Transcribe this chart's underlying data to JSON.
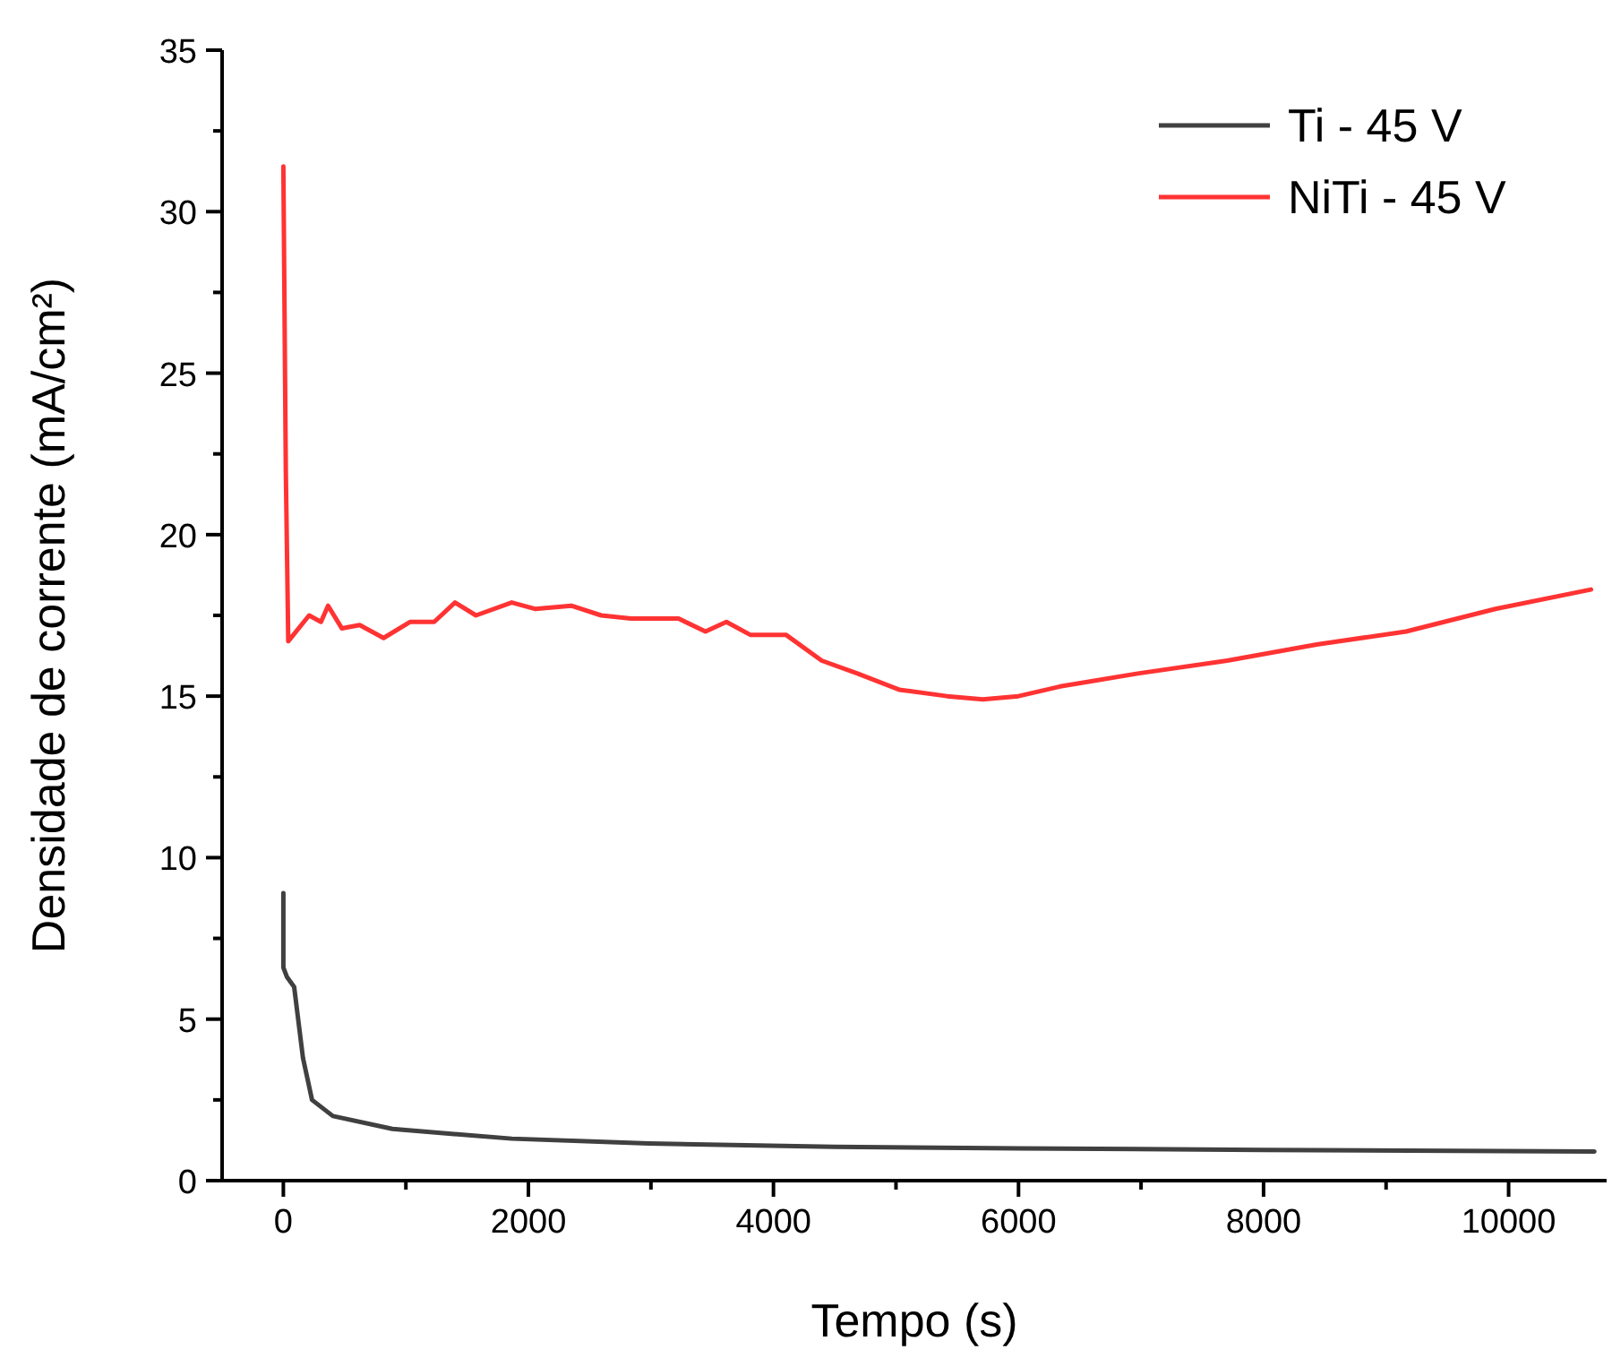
{
  "chart_data": {
    "type": "line",
    "xlabel": "Tempo (s)",
    "ylabel": "Densidade de corrente (mA/cm²)",
    "xlim": [
      -500,
      10800
    ],
    "ylim": [
      0,
      35
    ],
    "xticks": [
      0,
      {
        "value": 1000,
        "label": null
      },
      2000,
      {
        "value": 3000,
        "label": null
      },
      4000,
      {
        "value": 5000,
        "label": null
      },
      6000,
      {
        "value": 7000,
        "label": null
      },
      8000,
      {
        "value": 9000,
        "label": null
      },
      10000
    ],
    "yticks": [
      0,
      {
        "value": 2.5,
        "label": null
      },
      5,
      {
        "value": 7.5,
        "label": null
      },
      10,
      {
        "value": 12.5,
        "label": null
      },
      15,
      {
        "value": 17.5,
        "label": null
      },
      20,
      {
        "value": 22.5,
        "label": null
      },
      25,
      {
        "value": 27.5,
        "label": null
      },
      30,
      {
        "value": 32.5,
        "label": null
      },
      35
    ],
    "legend": "top right",
    "grid": false,
    "line_style": "solid",
    "marker": "none",
    "series": [
      {
        "name": "Ti - 45 V",
        "color": "#404040",
        "x": [
          0,
          0,
          30,
          88,
          160,
          234,
          404,
          890,
          1864,
          2983,
          4494,
          6000,
          8000,
          10700
        ],
        "values": [
          8.9,
          6.6,
          6.3,
          6.0,
          3.8,
          2.5,
          2.0,
          1.6,
          1.3,
          1.15,
          1.05,
          1.0,
          0.95,
          0.9
        ]
      },
      {
        "name": "NiTi - 45 V",
        "color": "#ff3333",
        "x": [
          0,
          20,
          40,
          210,
          307,
          365,
          477,
          623,
          818,
          1036,
          1231,
          1401,
          1572,
          1864,
          2058,
          2350,
          2594,
          2837,
          3226,
          3445,
          3616,
          3810,
          4102,
          4394,
          4686,
          5026,
          5416,
          5708,
          6000,
          6340,
          6973,
          7703,
          8433,
          9163,
          9893,
          10672
        ],
        "values": [
          31.4,
          22,
          16.7,
          17.5,
          17.3,
          17.8,
          17.1,
          17.2,
          16.8,
          17.3,
          17.3,
          17.9,
          17.5,
          17.9,
          17.7,
          17.8,
          17.5,
          17.4,
          17.4,
          17.0,
          17.3,
          16.9,
          16.9,
          16.1,
          15.7,
          15.2,
          15.0,
          14.9,
          15.0,
          15.3,
          15.7,
          16.1,
          16.6,
          17.0,
          17.7,
          18.3
        ]
      }
    ]
  }
}
